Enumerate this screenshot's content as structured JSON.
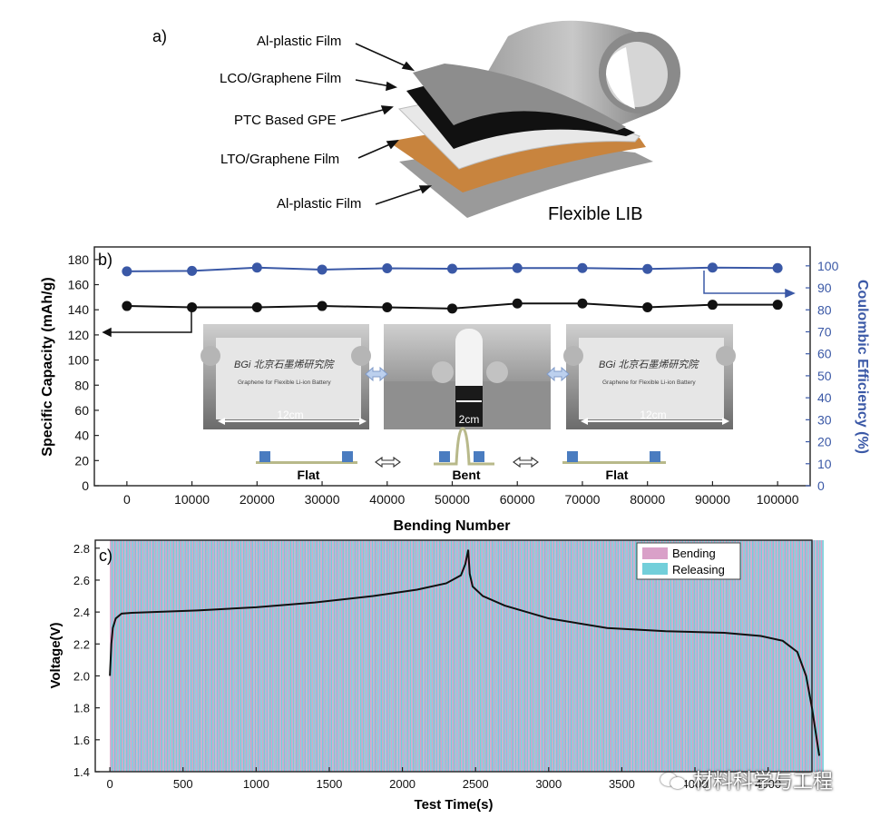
{
  "panel_a": {
    "tag": "a)",
    "layers": [
      "Al-plastic Film",
      "LCO/Graphene Film",
      "PTC Based GPE",
      "LTO/Graphene Film",
      "Al-plastic Film"
    ],
    "product": "Flexible LIB"
  },
  "panel_b": {
    "tag": "b)",
    "photo_text": {
      "logo": "BGi 北京石墨烯研究院",
      "caption": "Graphene for Flexible Li-ion Battery",
      "flat_width": "12cm",
      "bent_width": "2cm"
    },
    "states": [
      "Flat",
      "Bent",
      "Flat"
    ]
  },
  "panel_c": {
    "tag": "c)"
  },
  "watermark": "材料科学与工程",
  "chart_data": [
    {
      "type": "line",
      "xlabel": "Bending Number",
      "ylabel": "Specific Capacity (mAh/g)",
      "y2label": "Coulombic Efficiency (%)",
      "xlim": [
        -5000,
        105000
      ],
      "ylim": [
        0,
        190
      ],
      "y2lim": [
        0,
        108.6
      ],
      "xticks": [
        0,
        10000,
        20000,
        30000,
        40000,
        50000,
        60000,
        70000,
        80000,
        90000,
        100000
      ],
      "yticks": [
        0,
        20,
        40,
        60,
        80,
        100,
        120,
        140,
        160,
        180
      ],
      "y2ticks": [
        0,
        10,
        20,
        30,
        40,
        50,
        60,
        70,
        80,
        90,
        100
      ],
      "x": [
        0,
        10000,
        20000,
        30000,
        40000,
        50000,
        60000,
        70000,
        80000,
        90000,
        100000
      ],
      "series": [
        {
          "axis": "left",
          "color": "#111111",
          "values": [
            143,
            142,
            142,
            143,
            142,
            141,
            145,
            145,
            142,
            144,
            144
          ]
        },
        {
          "axis": "right",
          "color": "#3a58a6",
          "values": [
            97.5,
            97.7,
            99.2,
            98.3,
            98.9,
            98.7,
            99.0,
            99.0,
            98.6,
            99.2,
            99.0
          ]
        }
      ]
    },
    {
      "type": "line",
      "xlabel": "Test Time(s)",
      "ylabel": "Voltage(V)",
      "xlim": [
        -100,
        4800
      ],
      "ylim": [
        1.4,
        2.85
      ],
      "xticks": [
        0,
        500,
        1000,
        1500,
        2000,
        2500,
        3000,
        3500,
        4000,
        4500
      ],
      "yticks": [
        1.4,
        1.6,
        1.8,
        2.0,
        2.2,
        2.4,
        2.6,
        2.8
      ],
      "legend": [
        "Bending",
        "Releasing"
      ],
      "legend_colors": [
        "#d9a0c8",
        "#72cfda"
      ],
      "legend_position": "top-right",
      "band_range": [
        0,
        4870
      ],
      "band_period": 20,
      "x": [
        0,
        10,
        20,
        40,
        80,
        150,
        300,
        600,
        1000,
        1400,
        1800,
        2100,
        2300,
        2400,
        2430,
        2450,
        2460,
        2480,
        2550,
        2700,
        3000,
        3400,
        3800,
        4200,
        4450,
        4600,
        4700,
        4760,
        4800,
        4830,
        4850
      ],
      "values": [
        2.0,
        2.2,
        2.3,
        2.36,
        2.39,
        2.395,
        2.4,
        2.41,
        2.43,
        2.46,
        2.5,
        2.54,
        2.58,
        2.63,
        2.7,
        2.79,
        2.64,
        2.56,
        2.5,
        2.44,
        2.36,
        2.3,
        2.28,
        2.27,
        2.25,
        2.22,
        2.15,
        2.0,
        1.8,
        1.62,
        1.5
      ]
    }
  ]
}
